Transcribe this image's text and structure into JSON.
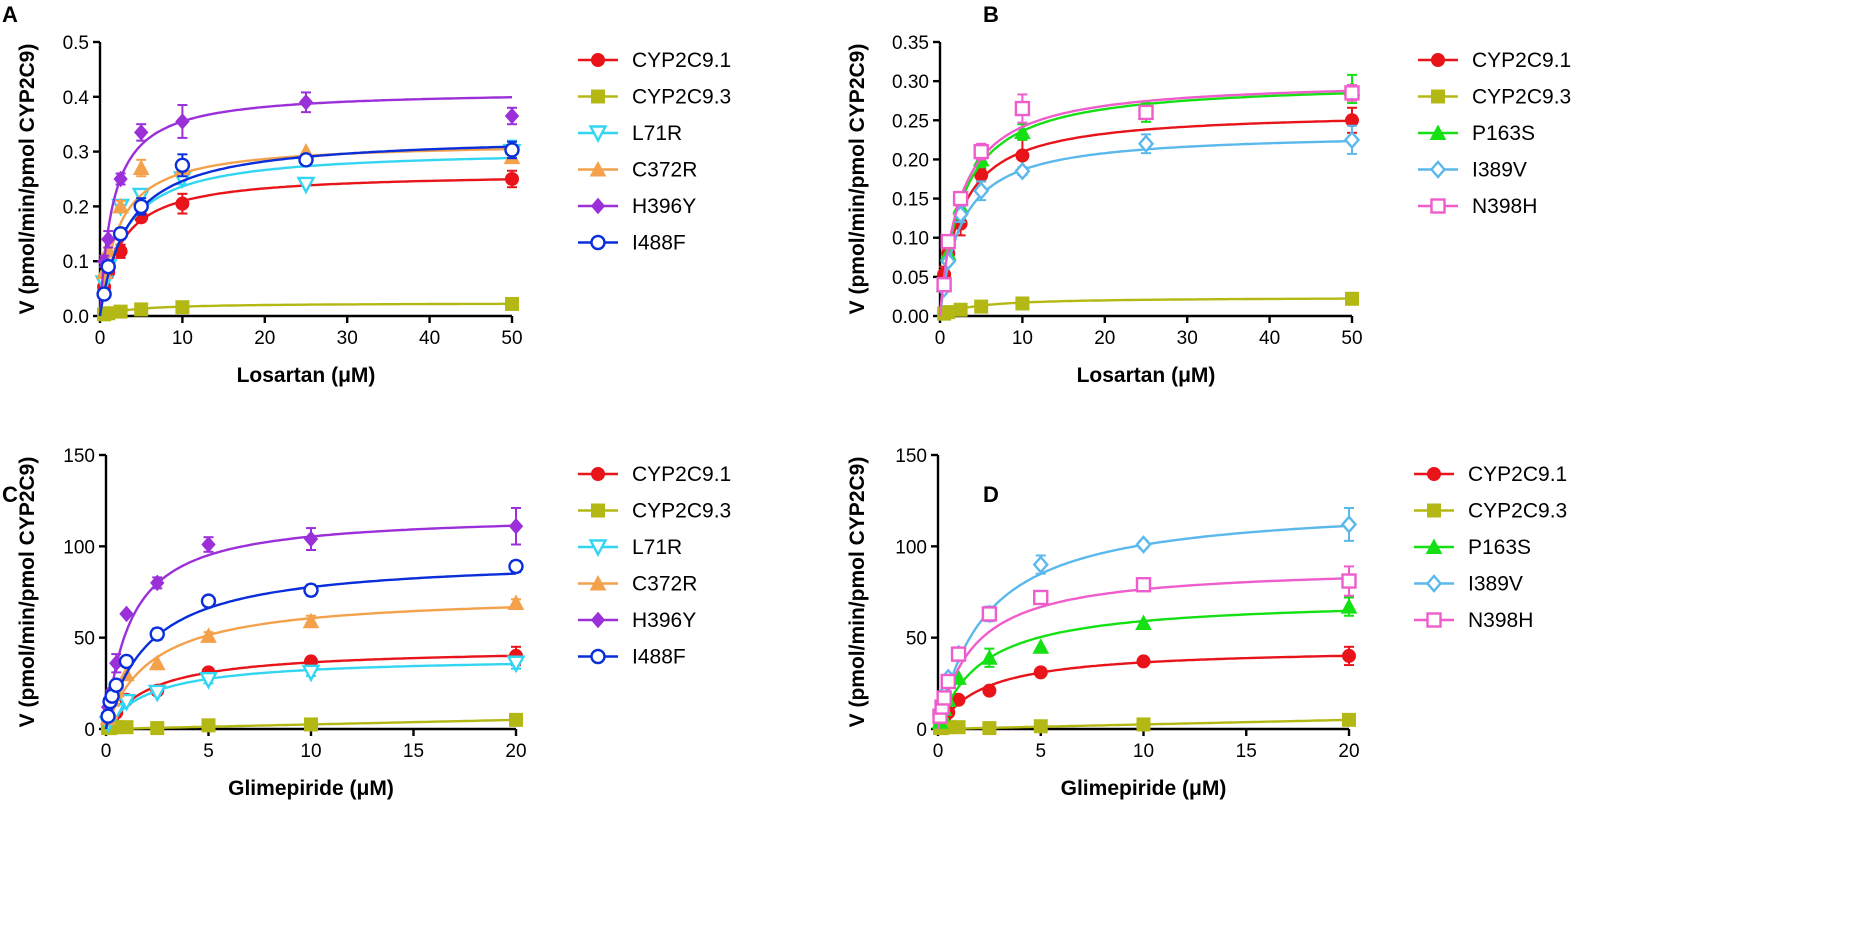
{
  "chart_data": [
    {
      "panel": "A",
      "type": "scatter",
      "xlabel": "Losartan (μM)",
      "ylabel": "V (pmol/min/pmol CYP2C9)",
      "xlim": [
        0,
        50
      ],
      "ylim": [
        0,
        0.5
      ],
      "xticks": [
        0,
        10,
        20,
        30,
        40,
        50
      ],
      "xtick_labels": [
        "0",
        "10",
        "20",
        "30",
        "40",
        "50"
      ],
      "yticks": [
        0,
        0.1,
        0.2,
        0.3,
        0.4,
        0.5
      ],
      "ytick_labels": [
        "0.0",
        "0.1",
        "0.2",
        "0.3",
        "0.4",
        "0.5"
      ],
      "legend_position": "right",
      "x": [
        0.5,
        1,
        2.5,
        5,
        10,
        25,
        50
      ],
      "series": [
        {
          "name": "CYP2C9.1",
          "color": "#e8141a",
          "marker": "circle",
          "fit": {
            "vmax": 0.262,
            "km": 2.5
          },
          "values": [
            0.053,
            0.08,
            0.118,
            0.18,
            0.205,
            null,
            0.25
          ],
          "errors": [
            0.01,
            0.01,
            0.012,
            0.008,
            0.018,
            null,
            0.015
          ]
        },
        {
          "name": "CYP2C9.3",
          "color": "#b3b814",
          "marker": "square",
          "fit": {
            "vmax": 0.024,
            "km": 4
          },
          "values": [
            0.003,
            0.005,
            0.008,
            0.012,
            0.016,
            null,
            0.022
          ],
          "errors": [
            0,
            0,
            0,
            0,
            0,
            null,
            0
          ]
        },
        {
          "name": "L71R",
          "color": "#33d6f2",
          "marker": "triangle-down-open",
          "fit": {
            "vmax": 0.305,
            "km": 2.9
          },
          "values": [
            0.06,
            0.09,
            0.2,
            0.22,
            0.25,
            0.24,
            0.3
          ],
          "errors": [
            0,
            0,
            0.01,
            0.01,
            0.01,
            0,
            0.02
          ]
        },
        {
          "name": "C372R",
          "color": "#f4a14b",
          "marker": "triangle",
          "fit": {
            "vmax": 0.318,
            "km": 2.2
          },
          "values": [
            0.08,
            0.12,
            0.2,
            0.27,
            0.27,
            0.3,
            0.29
          ],
          "errors": [
            0,
            0,
            0.01,
            0.015,
            0.01,
            0,
            0.01
          ]
        },
        {
          "name": "H396Y",
          "color": "#9b30d9",
          "marker": "diamond",
          "fit": {
            "vmax": 0.412,
            "km": 1.6
          },
          "values": [
            0.1,
            0.14,
            0.25,
            0.335,
            0.355,
            0.39,
            0.365
          ],
          "errors": [
            0.01,
            0.015,
            0.01,
            0.015,
            0.03,
            0.018,
            0.015
          ]
        },
        {
          "name": "I488F",
          "color": "#0a2ed9",
          "marker": "circle-open",
          "fit": {
            "vmax": 0.33,
            "km": 3.4
          },
          "values": [
            0.04,
            0.09,
            0.15,
            0.2,
            0.275,
            0.285,
            0.303
          ],
          "errors": [
            0.005,
            0,
            0.01,
            0.015,
            0.02,
            0,
            0.015
          ]
        }
      ]
    },
    {
      "panel": "B",
      "type": "scatter",
      "xlabel": "Losartan (μM)",
      "ylabel": "V (pmol/min/pmol CYP2C9)",
      "xlim": [
        0,
        50
      ],
      "ylim": [
        0,
        0.35
      ],
      "xticks": [
        0,
        10,
        20,
        30,
        40,
        50
      ],
      "xtick_labels": [
        "0",
        "10",
        "20",
        "30",
        "40",
        "50"
      ],
      "yticks": [
        0,
        0.05,
        0.1,
        0.15,
        0.2,
        0.25,
        0.3,
        0.35
      ],
      "ytick_labels": [
        "0.00",
        "0.05",
        "0.10",
        "0.15",
        "0.20",
        "0.25",
        "0.30",
        "0.35"
      ],
      "legend_position": "right",
      "x": [
        0.5,
        1,
        2.5,
        5,
        10,
        25,
        50
      ],
      "series": [
        {
          "name": "CYP2C9.1",
          "color": "#e8141a",
          "marker": "circle",
          "fit": {
            "vmax": 0.262,
            "km": 2.5
          },
          "values": [
            0.053,
            0.08,
            0.118,
            0.18,
            0.205,
            null,
            0.25
          ],
          "errors": [
            0.01,
            0.01,
            0.015,
            0.008,
            0.02,
            null,
            0.016
          ]
        },
        {
          "name": "CYP2C9.3",
          "color": "#b3b814",
          "marker": "square",
          "fit": {
            "vmax": 0.024,
            "km": 4
          },
          "values": [
            0.003,
            0.005,
            0.008,
            0.012,
            0.016,
            null,
            0.022
          ],
          "errors": [
            0,
            0,
            0,
            0,
            0,
            null,
            0
          ]
        },
        {
          "name": "P163S",
          "color": "#14e014",
          "marker": "triangle",
          "fit": {
            "vmax": 0.3,
            "km": 2.7
          },
          "values": [
            0.04,
            0.08,
            0.14,
            0.2,
            0.235,
            0.26,
            0.29
          ],
          "errors": [
            0,
            0,
            0.01,
            0.01,
            0.01,
            0.012,
            0.018
          ]
        },
        {
          "name": "I389V",
          "color": "#5ab8ec",
          "marker": "diamond-open",
          "fit": {
            "vmax": 0.235,
            "km": 2.6
          },
          "values": [
            0.035,
            0.07,
            0.13,
            0.16,
            0.185,
            0.22,
            0.225
          ],
          "errors": [
            0,
            0,
            0.01,
            0.012,
            0.005,
            0.012,
            0.018
          ]
        },
        {
          "name": "N398H",
          "color": "#ef5ccb",
          "marker": "square-open",
          "fit": {
            "vmax": 0.302,
            "km": 2.5
          },
          "values": [
            0.04,
            0.095,
            0.15,
            0.21,
            0.265,
            0.26,
            0.285
          ],
          "errors": [
            0,
            0,
            0.008,
            0.01,
            0.018,
            0.008,
            0.01
          ]
        }
      ]
    },
    {
      "panel": "C",
      "type": "scatter",
      "xlabel": "Glimepiride (μM)",
      "ylabel": "V (pmol/min/pmol CYP2C9)",
      "xlim": [
        0,
        20
      ],
      "ylim": [
        0,
        150
      ],
      "xticks": [
        0,
        5,
        10,
        15,
        20
      ],
      "xtick_labels": [
        "0",
        "5",
        "10",
        "15",
        "20"
      ],
      "yticks": [
        0,
        50,
        100,
        150
      ],
      "ytick_labels": [
        "0",
        "50",
        "100",
        "150"
      ],
      "legend_position": "right",
      "x": [
        0.1,
        0.2,
        0.3,
        0.5,
        1,
        2.5,
        5,
        10,
        20
      ],
      "series": [
        {
          "name": "CYP2C9.1",
          "color": "#e8141a",
          "marker": "circle",
          "fit": {
            "vmax": 44.5,
            "km": 2.2
          },
          "values": [
            2,
            4,
            6,
            9,
            16,
            21,
            31,
            37,
            40
          ],
          "errors": [
            0,
            0,
            0,
            0,
            0,
            0,
            2,
            1,
            5
          ]
        },
        {
          "name": "CYP2C9.3",
          "color": "#b3b814",
          "marker": "square",
          "fit": {
            "linear": 0.25
          },
          "values": [
            0.5,
            0.5,
            1,
            1,
            1,
            0.5,
            2,
            2.5,
            5
          ],
          "errors": [
            0,
            0,
            0,
            0,
            0,
            0,
            0,
            0,
            0
          ]
        },
        {
          "name": "L71R",
          "color": "#33d6f2",
          "marker": "triangle-down-open",
          "fit": {
            "vmax": 39.5,
            "km": 2.2
          },
          "values": [
            3,
            5,
            7,
            10,
            15,
            20,
            27,
            31,
            36
          ],
          "errors": [
            0,
            0,
            0,
            0,
            0,
            0,
            2,
            2,
            3
          ]
        },
        {
          "name": "C372R",
          "color": "#f4a14b",
          "marker": "triangle",
          "fit": {
            "vmax": 74,
            "km": 2.2
          },
          "values": [
            6,
            9,
            16,
            21,
            30,
            36,
            51,
            59,
            69
          ],
          "errors": [
            0,
            0,
            0,
            0,
            0,
            0,
            2,
            3,
            2
          ]
        },
        {
          "name": "H396Y",
          "color": "#9b30d9",
          "marker": "diamond",
          "fit": {
            "vmax": 118,
            "km": 1.2
          },
          "values": [
            12,
            17,
            21,
            36,
            63,
            80,
            101,
            104,
            111
          ],
          "errors": [
            0,
            0,
            0,
            5,
            0,
            3,
            4,
            6,
            10
          ]
        },
        {
          "name": "I488F",
          "color": "#0a2ed9",
          "marker": "circle-open",
          "fit": {
            "vmax": 94,
            "km": 2.1
          },
          "values": [
            7,
            15,
            18,
            24,
            37,
            52,
            70,
            76,
            89
          ],
          "errors": [
            0,
            0,
            0,
            0,
            2,
            3,
            1,
            3,
            3
          ]
        }
      ]
    },
    {
      "panel": "D",
      "type": "scatter",
      "xlabel": "Glimepiride (μM)",
      "ylabel": "V (pmol/min/pmol CYP2C9)",
      "xlim": [
        0,
        20
      ],
      "ylim": [
        0,
        150
      ],
      "xticks": [
        0,
        5,
        10,
        15,
        20
      ],
      "xtick_labels": [
        "0",
        "5",
        "10",
        "15",
        "20"
      ],
      "yticks": [
        0,
        50,
        100,
        150
      ],
      "ytick_labels": [
        "0",
        "50",
        "100",
        "150"
      ],
      "legend_position": "right",
      "x": [
        0.1,
        0.2,
        0.3,
        0.5,
        1,
        2.5,
        5,
        10,
        20
      ],
      "series": [
        {
          "name": "CYP2C9.1",
          "color": "#e8141a",
          "marker": "circle",
          "fit": {
            "vmax": 44.5,
            "km": 2.2
          },
          "values": [
            2,
            4,
            6,
            9,
            16,
            21,
            31,
            37,
            40
          ],
          "errors": [
            0,
            0,
            0,
            0,
            0,
            0,
            2,
            1,
            5
          ]
        },
        {
          "name": "CYP2C9.3",
          "color": "#b3b814",
          "marker": "square",
          "fit": {
            "linear": 0.25
          },
          "values": [
            0.5,
            0.5,
            1,
            1,
            1,
            0.5,
            1.5,
            2.5,
            5
          ],
          "errors": [
            0,
            0,
            0,
            0,
            0,
            0,
            0,
            0,
            0
          ]
        },
        {
          "name": "P163S",
          "color": "#14e014",
          "marker": "triangle",
          "fit": {
            "vmax": 71.5,
            "km": 2.1
          },
          "values": [
            4,
            8,
            11,
            16,
            28,
            39,
            45,
            58,
            67
          ],
          "errors": [
            0,
            0,
            0,
            0,
            0,
            5,
            0,
            0,
            5
          ]
        },
        {
          "name": "I389V",
          "color": "#5ab8ec",
          "marker": "diamond-open",
          "fit": {
            "vmax": 124,
            "km": 2.3
          },
          "values": [
            8,
            14,
            19,
            28,
            41,
            63,
            90,
            101,
            112
          ],
          "errors": [
            0,
            0,
            0,
            0,
            0,
            4,
            5,
            2,
            9
          ]
        },
        {
          "name": "N398H",
          "color": "#ef5ccb",
          "marker": "square-open",
          "fit": {
            "vmax": 89.5,
            "km": 1.7
          },
          "values": [
            7,
            12,
            17,
            26,
            41,
            63,
            72,
            79,
            81
          ],
          "errors": [
            0,
            0,
            0,
            0,
            0,
            0,
            3,
            2,
            8
          ]
        }
      ]
    }
  ]
}
